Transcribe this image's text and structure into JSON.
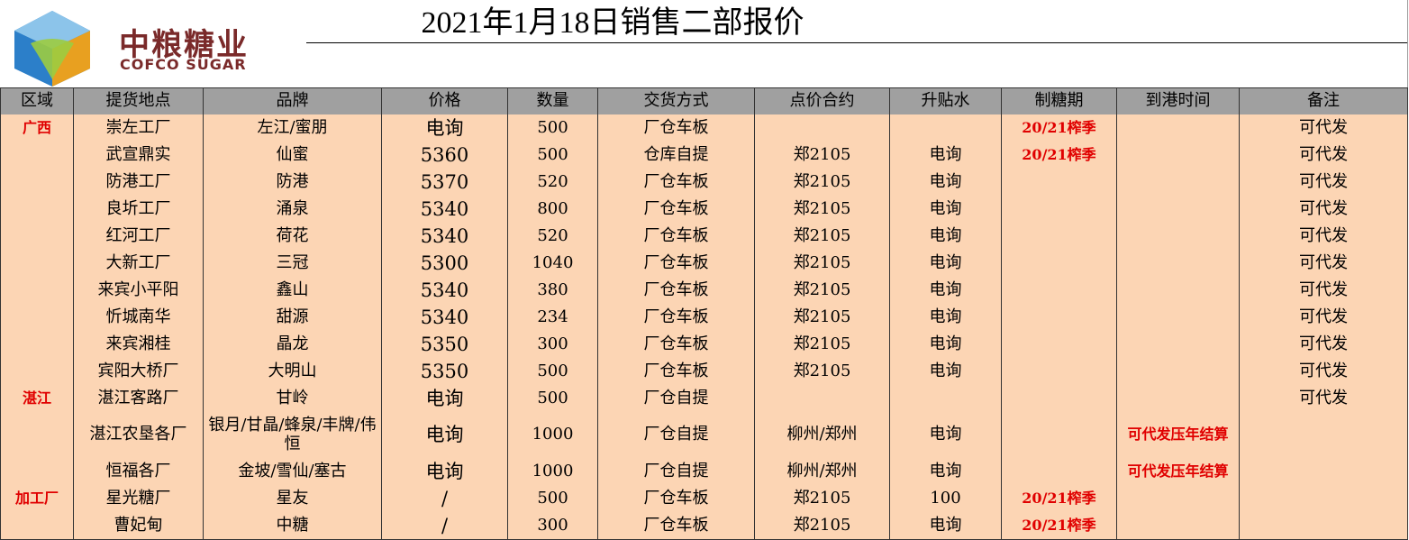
{
  "header": {
    "title": "2021年1月18日销售二部报价",
    "logo_cn": "中粮糖业",
    "logo_en": "COFCO SUGAR"
  },
  "table": {
    "columns": [
      "区域",
      "提货地点",
      "品牌",
      "价格",
      "数量",
      "交货方式",
      "点价合约",
      "升贴水",
      "制糖期",
      "到港时间",
      "备注"
    ],
    "rows": [
      [
        "广西",
        "崇左工厂",
        "左江/蜜朋",
        "电询",
        "500",
        "厂仓车板",
        "",
        "",
        "20/21榨季",
        "",
        "可代发"
      ],
      [
        "",
        "武宣鼎实",
        "仙蜜",
        "5360",
        "500",
        "仓库自提",
        "郑2105",
        "电询",
        "20/21榨季",
        "",
        "可代发"
      ],
      [
        "",
        "防港工厂",
        "防港",
        "5370",
        "520",
        "厂仓车板",
        "郑2105",
        "电询",
        "",
        "",
        "可代发"
      ],
      [
        "",
        "良圻工厂",
        "涌泉",
        "5340",
        "800",
        "厂仓车板",
        "郑2105",
        "电询",
        "",
        "",
        "可代发"
      ],
      [
        "",
        "红河工厂",
        "荷花",
        "5340",
        "520",
        "厂仓车板",
        "郑2105",
        "电询",
        "",
        "",
        "可代发"
      ],
      [
        "",
        "大新工厂",
        "三冠",
        "5300",
        "1040",
        "厂仓车板",
        "郑2105",
        "电询",
        "",
        "",
        "可代发"
      ],
      [
        "",
        "来宾小平阳",
        "鑫山",
        "5340",
        "380",
        "厂仓车板",
        "郑2105",
        "电询",
        "",
        "",
        "可代发"
      ],
      [
        "",
        "忻城南华",
        "甜源",
        "5340",
        "234",
        "厂仓车板",
        "郑2105",
        "电询",
        "",
        "",
        "可代发"
      ],
      [
        "",
        "来宾湘桂",
        "晶龙",
        "5350",
        "300",
        "厂仓车板",
        "郑2105",
        "电询",
        "",
        "",
        "可代发"
      ],
      [
        "",
        "宾阳大桥厂",
        "大明山",
        "5350",
        "500",
        "厂仓车板",
        "郑2105",
        "电询",
        "",
        "",
        "可代发"
      ],
      [
        "湛江",
        "湛江客路厂",
        "甘岭",
        "电询",
        "500",
        "厂仓自提",
        "",
        "",
        "",
        "",
        "可代发"
      ],
      [
        "",
        "湛江农垦各厂",
        "银月/甘晶/蜂泉/丰牌/伟恒",
        "电询",
        "1000",
        "厂仓自提",
        "柳州/郑州",
        "电询",
        "",
        "可代发压年结算",
        ""
      ],
      [
        "",
        "恒福各厂",
        "金坡/雪仙/塞古",
        "电询",
        "1000",
        "厂仓自提",
        "柳州/郑州",
        "电询",
        "",
        "可代发压年结算",
        ""
      ],
      [
        "加工厂",
        "星光糖厂",
        "星友",
        "/",
        "500",
        "厂仓车板",
        "郑2105",
        "100",
        "20/21榨季",
        "",
        ""
      ],
      [
        "",
        "曹妃甸",
        "中糖",
        "/",
        "300",
        "厂仓车板",
        "郑2105",
        "电询",
        "20/21榨季",
        "",
        ""
      ]
    ]
  }
}
